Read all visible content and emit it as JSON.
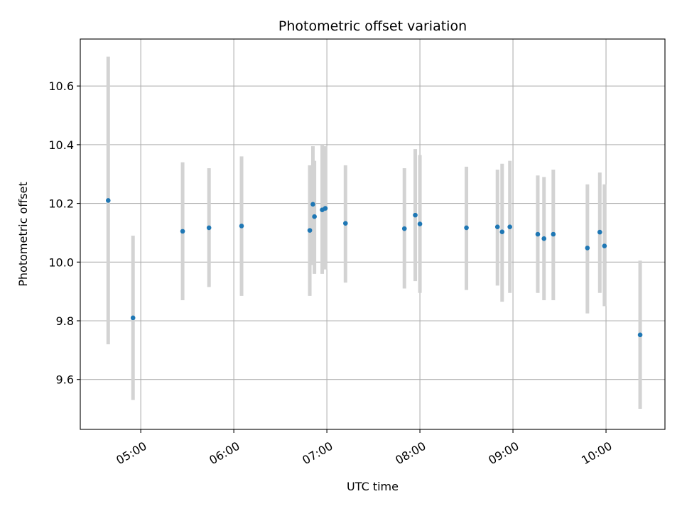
{
  "chart_data": {
    "type": "scatter",
    "title": "Photometric offset variation",
    "xlabel": "UTC time",
    "ylabel": "Photometric offset",
    "x_unit": "UTC HH:MM",
    "xlim": [
      "04:21",
      "10:38"
    ],
    "ylim": [
      9.43,
      10.76
    ],
    "x_ticks": [
      "05:00",
      "06:00",
      "07:00",
      "08:00",
      "09:00",
      "10:00"
    ],
    "y_ticks": [
      "9.6",
      "9.8",
      "10.0",
      "10.2",
      "10.4",
      "10.6"
    ],
    "grid": true,
    "error_bar_color": "#d3d3d3",
    "point_color": "#1f77b4",
    "points": [
      {
        "x": "04:39",
        "y": 10.21,
        "y_low": 9.72,
        "y_high": 10.7
      },
      {
        "x": "04:55",
        "y": 9.81,
        "y_low": 9.53,
        "y_high": 10.09
      },
      {
        "x": "05:27",
        "y": 10.105,
        "y_low": 9.87,
        "y_high": 10.34
      },
      {
        "x": "05:44",
        "y": 10.117,
        "y_low": 9.915,
        "y_high": 10.32
      },
      {
        "x": "06:05",
        "y": 10.123,
        "y_low": 9.885,
        "y_high": 10.36
      },
      {
        "x": "06:49",
        "y": 10.108,
        "y_low": 9.885,
        "y_high": 10.33
      },
      {
        "x": "06:51",
        "y": 10.197,
        "y_low": 9.99,
        "y_high": 10.395
      },
      {
        "x": "06:52",
        "y": 10.155,
        "y_low": 9.96,
        "y_high": 10.345
      },
      {
        "x": "06:57",
        "y": 10.178,
        "y_low": 9.96,
        "y_high": 10.4
      },
      {
        "x": "06:59",
        "y": 10.183,
        "y_low": 9.975,
        "y_high": 10.395
      },
      {
        "x": "07:12",
        "y": 10.132,
        "y_low": 9.93,
        "y_high": 10.33
      },
      {
        "x": "07:50",
        "y": 10.114,
        "y_low": 9.91,
        "y_high": 10.32
      },
      {
        "x": "07:57",
        "y": 10.16,
        "y_low": 9.935,
        "y_high": 10.385
      },
      {
        "x": "08:00",
        "y": 10.13,
        "y_low": 9.895,
        "y_high": 10.365
      },
      {
        "x": "08:30",
        "y": 10.117,
        "y_low": 9.905,
        "y_high": 10.325
      },
      {
        "x": "08:50",
        "y": 10.12,
        "y_low": 9.92,
        "y_high": 10.315
      },
      {
        "x": "08:53",
        "y": 10.103,
        "y_low": 9.865,
        "y_high": 10.335
      },
      {
        "x": "08:58",
        "y": 10.12,
        "y_low": 9.895,
        "y_high": 10.345
      },
      {
        "x": "09:16",
        "y": 10.095,
        "y_low": 9.895,
        "y_high": 10.295
      },
      {
        "x": "09:20",
        "y": 10.08,
        "y_low": 9.87,
        "y_high": 10.29
      },
      {
        "x": "09:26",
        "y": 10.095,
        "y_low": 9.87,
        "y_high": 10.315
      },
      {
        "x": "09:48",
        "y": 10.048,
        "y_low": 9.825,
        "y_high": 10.265
      },
      {
        "x": "09:56",
        "y": 10.102,
        "y_low": 9.895,
        "y_high": 10.305
      },
      {
        "x": "09:59",
        "y": 10.055,
        "y_low": 9.85,
        "y_high": 10.265
      },
      {
        "x": "10:22",
        "y": 9.752,
        "y_low": 9.5,
        "y_high": 10.005
      }
    ]
  }
}
